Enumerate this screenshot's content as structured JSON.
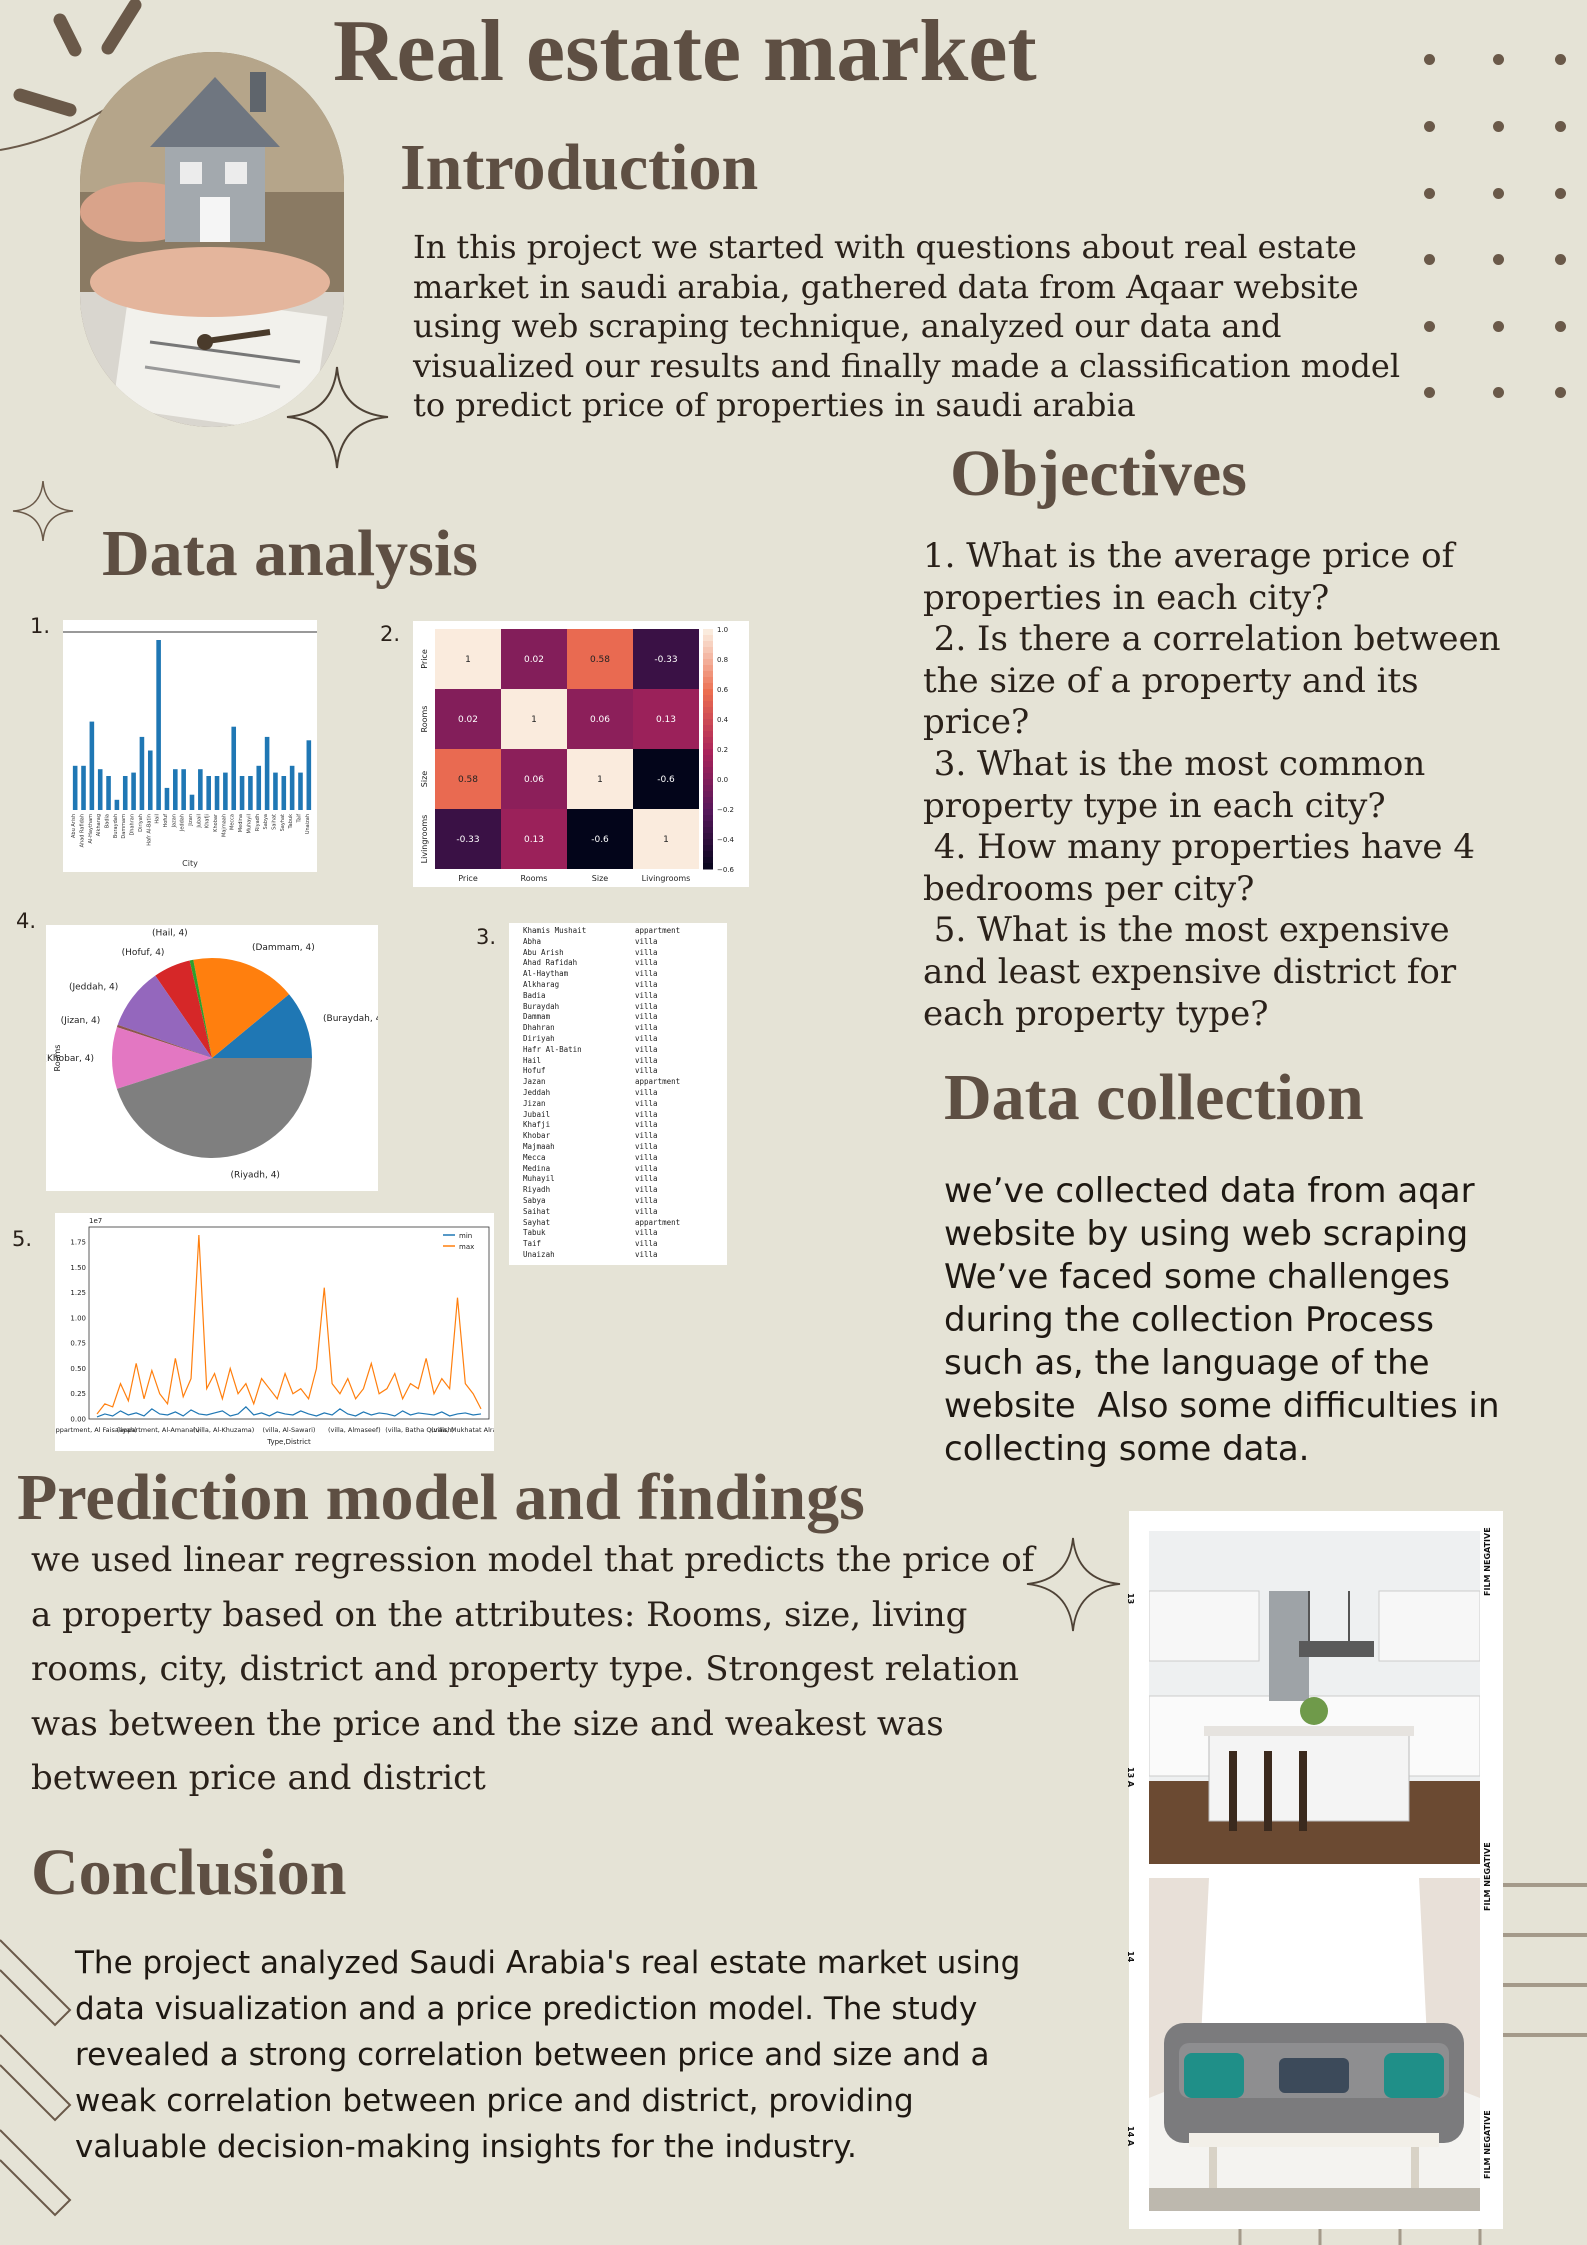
{
  "title": "Real estate market",
  "introduction": {
    "heading": "Introduction",
    "lines": [
      "In this project we started with questions about real estate",
      "market in saudi arabia, gathered data from Aqaar website",
      "using web scraping technique, analyzed our data and",
      "visualized our results and finally made a classification model",
      "to predict price of properties in saudi arabia"
    ]
  },
  "objectives": {
    "heading": "Objectives",
    "lines": [
      "1. What is the average price of",
      "properties in each city?",
      " 2. Is there a correlation between",
      "the size of a property and its",
      "price?",
      " 3. What is the most common",
      "property type in each city?",
      " 4. How many properties have 4",
      "bedrooms per city?",
      " 5. What is the most expensive",
      "and least expensive district for",
      "each property type?"
    ]
  },
  "data_analysis": {
    "heading": "Data analysis",
    "labels": [
      "1.",
      "2.",
      "3.",
      "4.",
      "5."
    ]
  },
  "data_collection": {
    "heading": "Data collection",
    "lines": [
      "we’ve collected data from aqar",
      "website by using web scraping",
      "We’ve faced some challenges",
      "during the collection Process",
      "such as, the language of the",
      "website  Also some difficulties in",
      "collecting some data."
    ]
  },
  "prediction": {
    "heading": "Prediction model and findings",
    "lines": [
      "we used linear regression model that predicts the price of",
      "a property based on the attributes: Rooms, size, living",
      "rooms, city, district and property type. Strongest relation",
      "was between the price and the size and weakest was",
      "between price and district"
    ]
  },
  "conclusion": {
    "heading": "Conclusion",
    "lines": [
      "The project analyzed Saudi Arabia's real estate market using",
      "data visualization and a price prediction model. The study",
      "revealed a strong correlation between price and size and a",
      "weak correlation between price and district, providing",
      "valuable decision-making insights for the industry."
    ]
  },
  "film_strip": {
    "side_labels": [
      "FILM NEGATIVE",
      "FILM NEGATIVE",
      "FILM NEGATIVE"
    ],
    "frame_labels": [
      "13",
      "13 A",
      "14",
      "14 A"
    ]
  },
  "chart_data": [
    {
      "type": "bar",
      "xlabel": "City",
      "bar_color": "#1f77b4",
      "categories": [
        "Abu Arish",
        "Ahad Rafidah",
        "Al-Haytham",
        "Alkharag",
        "Badia",
        "Buraydah",
        "Dammam",
        "Dhahran",
        "Diriyah",
        "Hafr Al-Batin",
        "Hail",
        "Hofuf",
        "Jazan",
        "Jeddah",
        "Jizan",
        "Jubail",
        "Khafji",
        "Khobar",
        "Majmaah",
        "Mecca",
        "Medina",
        "Muhayil",
        "Riyadh",
        "Sabya",
        "Saihat",
        "Sayhat",
        "Tabuk",
        "Taif",
        "Unaizah"
      ],
      "values": [
        0.26,
        0.26,
        0.52,
        0.24,
        0.2,
        0.06,
        0.2,
        0.22,
        0.43,
        0.35,
        1.0,
        0.13,
        0.24,
        0.24,
        0.09,
        0.24,
        0.2,
        0.2,
        0.22,
        0.49,
        0.2,
        0.2,
        0.26,
        0.43,
        0.22,
        0.2,
        0.26,
        0.22,
        0.41
      ]
    },
    {
      "type": "heatmap",
      "rows": [
        "Price",
        "Rooms",
        "Size",
        "Livingrooms"
      ],
      "columns": [
        "Price",
        "Rooms",
        "Size",
        "Livingrooms"
      ],
      "values": [
        [
          1,
          0.02,
          0.58,
          -0.33
        ],
        [
          0.02,
          1,
          0.06,
          0.13
        ],
        [
          0.58,
          0.06,
          1,
          -0.6
        ],
        [
          -0.33,
          0.13,
          -0.6,
          1
        ]
      ],
      "cell_labels": [
        [
          "1",
          "0.02",
          "0.58",
          "-0.33"
        ],
        [
          "0.02",
          "1",
          "0.06",
          "0.13"
        ],
        [
          "0.58",
          "0.06",
          "1",
          "-0.6"
        ],
        [
          "-0.33",
          "0.13",
          "-0.6",
          "1"
        ]
      ],
      "colorbar_ticks": [
        "1.0",
        "0.8",
        "0.6",
        "0.4",
        "0.2",
        "0.0",
        "−0.2",
        "−0.4",
        "−0.6"
      ],
      "range": [
        -0.6,
        1.0
      ]
    },
    {
      "type": "table",
      "rows": [
        [
          "Khamis Mushait",
          "appartment"
        ],
        [
          "Abha",
          "villa"
        ],
        [
          "Abu Arish",
          "villa"
        ],
        [
          "Ahad Rafidah",
          "villa"
        ],
        [
          "Al-Haytham",
          "villa"
        ],
        [
          "Alkharag",
          "villa"
        ],
        [
          "Badia",
          "villa"
        ],
        [
          "Buraydah",
          "villa"
        ],
        [
          "Dammam",
          "villa"
        ],
        [
          "Dhahran",
          "villa"
        ],
        [
          "Diriyah",
          "villa"
        ],
        [
          "Hafr Al-Batin",
          "villa"
        ],
        [
          "Hail",
          "villa"
        ],
        [
          "Hofuf",
          "villa"
        ],
        [
          "Jazan",
          "appartment"
        ],
        [
          "Jeddah",
          "villa"
        ],
        [
          "Jizan",
          "villa"
        ],
        [
          "Jubail",
          "villa"
        ],
        [
          "Khafji",
          "villa"
        ],
        [
          "Khobar",
          "villa"
        ],
        [
          "Majmaah",
          "villa"
        ],
        [
          "Mecca",
          "villa"
        ],
        [
          "Medina",
          "villa"
        ],
        [
          "Muhayil",
          "villa"
        ],
        [
          "Riyadh",
          "villa"
        ],
        [
          "Sabya",
          "villa"
        ],
        [
          "Saihat",
          "villa"
        ],
        [
          "Sayhat",
          "appartment"
        ],
        [
          "Tabuk",
          "villa"
        ],
        [
          "Taif",
          "villa"
        ],
        [
          "Unaizah",
          "villa"
        ]
      ]
    },
    {
      "type": "pie",
      "ylabel": "Rooms",
      "slices": [
        {
          "label": "(Buraydah, 4)",
          "value": 11,
          "color": "#1f77b4"
        },
        {
          "label": "(Dammam, 4)",
          "value": 17,
          "color": "#ff7f0e"
        },
        {
          "label": "(Hail, 4)",
          "value": 0.6,
          "color": "#2ca02c"
        },
        {
          "label": "(Hofuf, 4)",
          "value": 6,
          "color": "#d62728"
        },
        {
          "label": "(Jeddah, 4)",
          "value": 10,
          "color": "#9467bd"
        },
        {
          "label": "(Jizan, 4)",
          "value": 0.4,
          "color": "#8c564b"
        },
        {
          "label": "(Khobar, 4)",
          "value": 10,
          "color": "#e377c2"
        },
        {
          "label": "(Riyadh, 4)",
          "value": 45,
          "color": "#7f7f7f"
        }
      ]
    },
    {
      "type": "line",
      "xlabel": "Type,District",
      "multiplier_label": "1e7",
      "yticks": [
        "0.00",
        "0.25",
        "0.50",
        "0.75",
        "1.00",
        "1.25",
        "1.50",
        "1.75"
      ],
      "ylim": [
        0,
        1.9
      ],
      "xtick_labels": [
        "(appartment, Al Faisaliyah)",
        "(appartment, Al-Amanah)",
        "(villa, Al-Khuzama)",
        "(villa, Al-Sawari)",
        "(villa, Almaseef)",
        "(villa, Batha Quraish)",
        "(villa, Mukhatat Alrawda, Tuwaiq)"
      ],
      "series": [
        {
          "name": "min",
          "color": "#1f77b4",
          "values": [
            0.02,
            0.05,
            0.03,
            0.08,
            0.04,
            0.06,
            0.03,
            0.1,
            0.05,
            0.04,
            0.07,
            0.03,
            0.09,
            0.05,
            0.04,
            0.06,
            0.08,
            0.03,
            0.05,
            0.12,
            0.04,
            0.06,
            0.03,
            0.07,
            0.05,
            0.04,
            0.08,
            0.05,
            0.03,
            0.06,
            0.04,
            0.1,
            0.05,
            0.03,
            0.07,
            0.04,
            0.06,
            0.05,
            0.03,
            0.08,
            0.04,
            0.06,
            0.05,
            0.04,
            0.07,
            0.03,
            0.05,
            0.06,
            0.04,
            0.05
          ]
        },
        {
          "name": "max",
          "color": "#ff7f0e",
          "values": [
            0.05,
            0.15,
            0.12,
            0.35,
            0.18,
            0.55,
            0.2,
            0.48,
            0.25,
            0.15,
            0.6,
            0.22,
            0.4,
            1.82,
            0.3,
            0.45,
            0.2,
            0.5,
            0.25,
            0.35,
            0.15,
            0.4,
            0.3,
            0.2,
            0.45,
            0.25,
            0.3,
            0.2,
            0.5,
            1.3,
            0.35,
            0.25,
            0.4,
            0.2,
            0.3,
            0.55,
            0.25,
            0.3,
            0.45,
            0.2,
            0.35,
            0.3,
            0.6,
            0.25,
            0.4,
            0.3,
            1.2,
            0.35,
            0.25,
            0.1
          ]
        }
      ]
    }
  ]
}
